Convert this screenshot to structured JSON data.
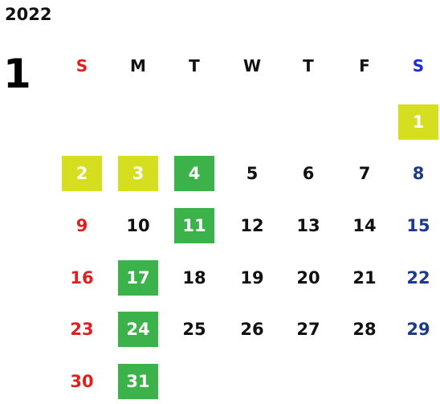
{
  "calendar": {
    "year": "2022",
    "month": "1",
    "weekdays": [
      "S",
      "M",
      "T",
      "W",
      "T",
      "F",
      "S"
    ],
    "days": [
      {
        "label": "1",
        "weekday": 6,
        "week": 0,
        "highlight": "yellow"
      },
      {
        "label": "2",
        "weekday": 0,
        "week": 1,
        "highlight": "yellow"
      },
      {
        "label": "3",
        "weekday": 1,
        "week": 1,
        "highlight": "yellow"
      },
      {
        "label": "4",
        "weekday": 2,
        "week": 1,
        "highlight": "green"
      },
      {
        "label": "5",
        "weekday": 3,
        "week": 1,
        "highlight": ""
      },
      {
        "label": "6",
        "weekday": 4,
        "week": 1,
        "highlight": ""
      },
      {
        "label": "7",
        "weekday": 5,
        "week": 1,
        "highlight": ""
      },
      {
        "label": "8",
        "weekday": 6,
        "week": 1,
        "highlight": ""
      },
      {
        "label": "9",
        "weekday": 0,
        "week": 2,
        "highlight": ""
      },
      {
        "label": "10",
        "weekday": 1,
        "week": 2,
        "highlight": ""
      },
      {
        "label": "11",
        "weekday": 2,
        "week": 2,
        "highlight": "green"
      },
      {
        "label": "12",
        "weekday": 3,
        "week": 2,
        "highlight": ""
      },
      {
        "label": "13",
        "weekday": 4,
        "week": 2,
        "highlight": ""
      },
      {
        "label": "14",
        "weekday": 5,
        "week": 2,
        "highlight": ""
      },
      {
        "label": "15",
        "weekday": 6,
        "week": 2,
        "highlight": ""
      },
      {
        "label": "16",
        "weekday": 0,
        "week": 3,
        "highlight": ""
      },
      {
        "label": "17",
        "weekday": 1,
        "week": 3,
        "highlight": "green"
      },
      {
        "label": "18",
        "weekday": 2,
        "week": 3,
        "highlight": ""
      },
      {
        "label": "19",
        "weekday": 3,
        "week": 3,
        "highlight": ""
      },
      {
        "label": "20",
        "weekday": 4,
        "week": 3,
        "highlight": ""
      },
      {
        "label": "21",
        "weekday": 5,
        "week": 3,
        "highlight": ""
      },
      {
        "label": "22",
        "weekday": 6,
        "week": 3,
        "highlight": ""
      },
      {
        "label": "23",
        "weekday": 0,
        "week": 4,
        "highlight": ""
      },
      {
        "label": "24",
        "weekday": 1,
        "week": 4,
        "highlight": "green"
      },
      {
        "label": "25",
        "weekday": 2,
        "week": 4,
        "highlight": ""
      },
      {
        "label": "26",
        "weekday": 3,
        "week": 4,
        "highlight": ""
      },
      {
        "label": "27",
        "weekday": 4,
        "week": 4,
        "highlight": ""
      },
      {
        "label": "28",
        "weekday": 5,
        "week": 4,
        "highlight": ""
      },
      {
        "label": "29",
        "weekday": 6,
        "week": 4,
        "highlight": ""
      },
      {
        "label": "30",
        "weekday": 0,
        "week": 5,
        "highlight": ""
      },
      {
        "label": "31",
        "weekday": 1,
        "week": 5,
        "highlight": "green"
      }
    ]
  },
  "colors": {
    "sunday": "#e02020",
    "saturday": "#1e3a8a",
    "saturday_header": "#1e2fd0",
    "highlight_yellow": "#d6df1f",
    "highlight_green": "#3cb34a"
  }
}
